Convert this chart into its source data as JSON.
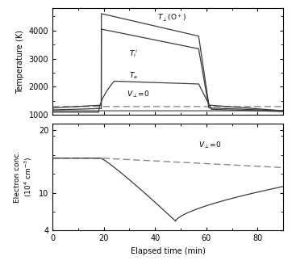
{
  "top_panel": {
    "ylabel": "Temperature (K)",
    "ylim": [
      1000,
      4800
    ],
    "yticks": [
      1000,
      2000,
      3000,
      4000
    ],
    "xlim": [
      0,
      90
    ],
    "xticks": [
      0,
      20,
      40,
      60,
      80
    ]
  },
  "bottom_panel": {
    "ylabel": "Electron conc. (10$^4$ cm$^{-3}$)",
    "ylim": [
      4,
      21
    ],
    "yticks": [
      4,
      10,
      20
    ],
    "xlim": [
      0,
      90
    ],
    "xticks": [
      0,
      20,
      40,
      60,
      80
    ],
    "xlabel": "Elapsed time (min)"
  },
  "line_color": "#3a3a3a",
  "dashed_color": "#888888"
}
